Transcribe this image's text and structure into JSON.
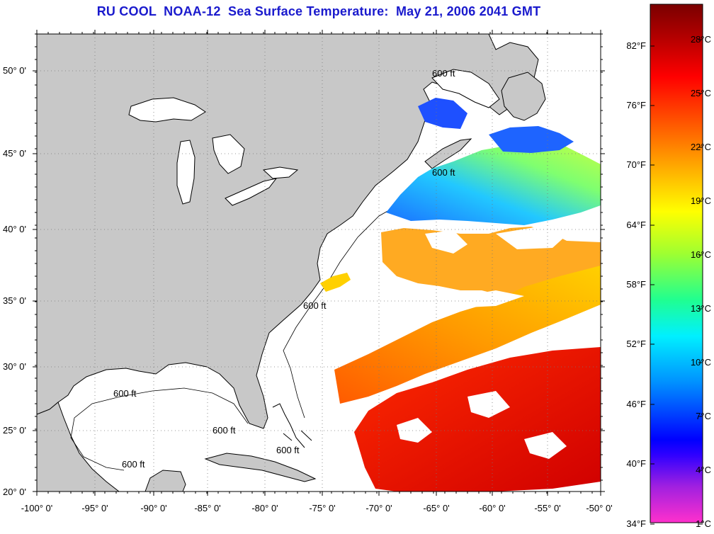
{
  "title": "RU COOL  NOAA-12  Sea Surface Temperature:  May 21, 2006 2041 GMT",
  "lat_labels": [
    "50° 0'",
    "45° 0'",
    "40° 0'",
    "35° 0'",
    "30° 0'",
    "25° 0'",
    "20° 0'"
  ],
  "lon_labels": [
    "-100° 0'",
    "-95° 0'",
    "-90° 0'",
    "-85° 0'",
    "-80° 0'",
    "-75° 0'",
    "-70° 0'",
    "-65° 0'",
    "-60° 0'",
    "-55° 0'",
    "-50° 0'"
  ],
  "isobath_label": "600 ft",
  "colorbar": {
    "fahrenheit": [
      "82°F",
      "76°F",
      "70°F",
      "64°F",
      "58°F",
      "52°F",
      "46°F",
      "40°F",
      "34°F"
    ],
    "celsius": [
      "28°C",
      "25°C",
      "22°C",
      "19°C",
      "16°C",
      "13°C",
      "10°C",
      "7°C",
      "4°C",
      "1°C"
    ],
    "colors": [
      "#8b0000",
      "#ff0000",
      "#ff8c00",
      "#ffff00",
      "#7fff00",
      "#00ffff",
      "#0064ff",
      "#0000ff",
      "#8a2be2",
      "#ff33cc"
    ]
  },
  "colors": {
    "land": "#c8c8c8",
    "water": "#ffffff",
    "title": "#1a1acd"
  }
}
